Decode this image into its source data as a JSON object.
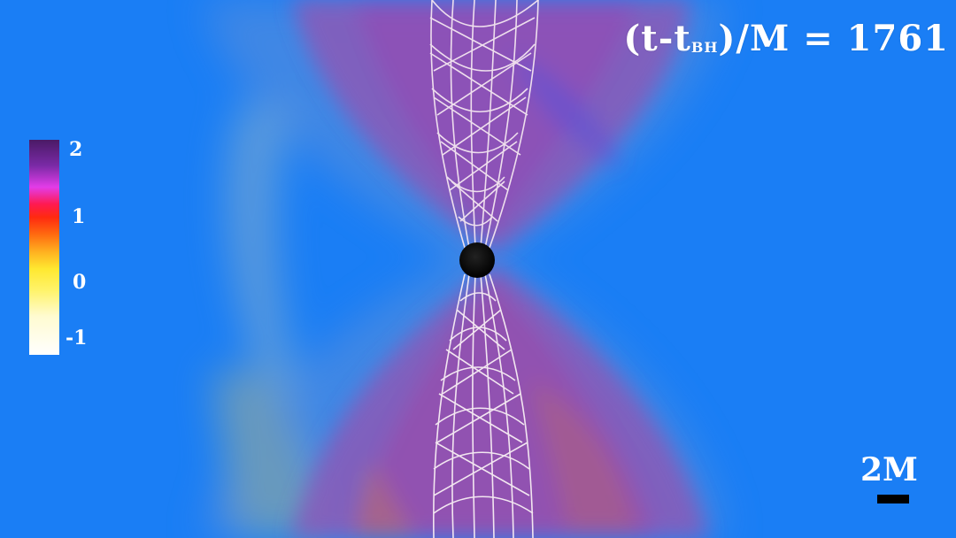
{
  "overlay": {
    "time_prefix": "(t-t",
    "time_subscript": "BH",
    "time_suffix": ")/M = 1761"
  },
  "colorbar": {
    "ticks": [
      "2",
      "1",
      "0",
      "-1"
    ]
  },
  "scale": {
    "label": "2M"
  },
  "colors": {
    "background": "#1a7ef5",
    "jet_lines": "#f4e6f0",
    "black_hole": "#000000"
  }
}
